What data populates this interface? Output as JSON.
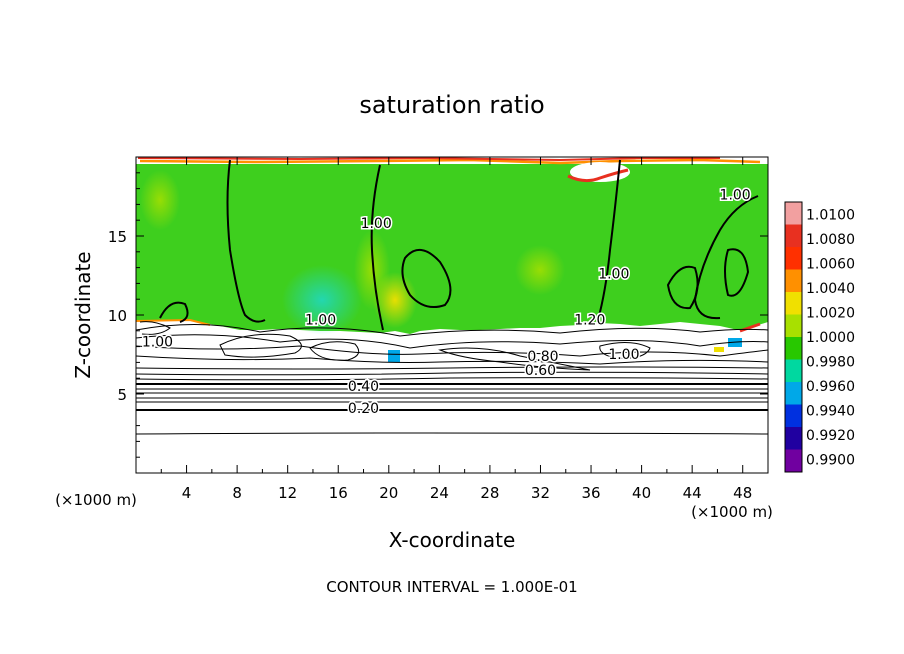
{
  "chart_data": {
    "type": "heatmap",
    "title": "saturation ratio",
    "xlabel": "X-coordinate",
    "ylabel": "Z-coordinate",
    "x_unit": "(×1000 m)",
    "y_unit": "(×1000 m)",
    "xlim": [
      0,
      50
    ],
    "ylim": [
      0,
      20
    ],
    "x_ticks": [
      4,
      8,
      12,
      16,
      20,
      24,
      28,
      32,
      36,
      40,
      44,
      48
    ],
    "y_ticks": [
      5,
      10,
      15
    ],
    "footer": "CONTOUR INTERVAL = 1.000E-01",
    "colorbar": {
      "levels": [
        "1.0100",
        "1.0080",
        "1.0060",
        "1.0040",
        "1.0020",
        "1.0000",
        "0.9980",
        "0.9960",
        "0.9940",
        "0.9920",
        "0.9900"
      ],
      "colors": [
        "#f2a0a0",
        "#e83020",
        "#ff3000",
        "#ff9000",
        "#f0e000",
        "#a8e000",
        "#28c800",
        "#00d8a0",
        "#00a8e8",
        "#0030e0",
        "#2000a0",
        "#7000a0"
      ]
    },
    "field_color": "#3ecf1e",
    "contour_labels": [
      {
        "text": "1.00",
        "x": 14.6,
        "y": 9.4
      },
      {
        "text": "1.00",
        "x": 1.7,
        "y": 8.0
      },
      {
        "text": "1.00",
        "x": 19.0,
        "y": 15.5
      },
      {
        "text": "1.00",
        "x": 37.8,
        "y": 12.3
      },
      {
        "text": "1.00",
        "x": 47.4,
        "y": 17.3
      },
      {
        "text": "1.20",
        "x": 35.9,
        "y": 9.4
      },
      {
        "text": "1.00",
        "x": 38.6,
        "y": 7.2
      },
      {
        "text": "0.80",
        "x": 32.2,
        "y": 7.1
      },
      {
        "text": "0.60",
        "x": 32.0,
        "y": 6.2
      },
      {
        "text": "0.40",
        "x": 18.0,
        "y": 5.2
      },
      {
        "text": "0.20",
        "x": 18.0,
        "y": 3.8
      }
    ]
  }
}
